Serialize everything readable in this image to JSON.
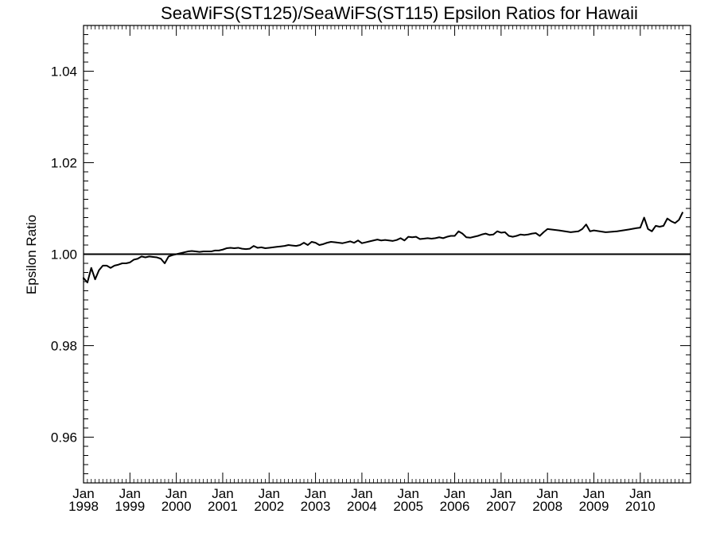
{
  "chart_data": {
    "type": "line",
    "title": "SeaWiFS(ST125)/SeaWiFS(ST115)  Epsilon Ratios for Hawaii",
    "xlabel": "",
    "ylabel": "Epsilon Ratio",
    "ylim": [
      0.95,
      1.05
    ],
    "xlim": [
      "1998-01",
      "2011-02"
    ],
    "grid": false,
    "reference_line": 1.0,
    "yticks": [
      {
        "value": 0.96,
        "label": "0.96"
      },
      {
        "value": 0.98,
        "label": "0.98"
      },
      {
        "value": 1.0,
        "label": "1.00"
      },
      {
        "value": 1.02,
        "label": "1.02"
      },
      {
        "value": 1.04,
        "label": "1.04"
      }
    ],
    "xticks": [
      {
        "date": "1998-01",
        "month": "Jan",
        "year": "1998"
      },
      {
        "date": "1999-01",
        "month": "Jan",
        "year": "1999"
      },
      {
        "date": "2000-01",
        "month": "Jan",
        "year": "2000"
      },
      {
        "date": "2001-01",
        "month": "Jan",
        "year": "2001"
      },
      {
        "date": "2002-01",
        "month": "Jan",
        "year": "2002"
      },
      {
        "date": "2003-01",
        "month": "Jan",
        "year": "2003"
      },
      {
        "date": "2004-01",
        "month": "Jan",
        "year": "2004"
      },
      {
        "date": "2005-01",
        "month": "Jan",
        "year": "2005"
      },
      {
        "date": "2006-01",
        "month": "Jan",
        "year": "2006"
      },
      {
        "date": "2007-01",
        "month": "Jan",
        "year": "2007"
      },
      {
        "date": "2008-01",
        "month": "Jan",
        "year": "2008"
      },
      {
        "date": "2009-01",
        "month": "Jan",
        "year": "2009"
      },
      {
        "date": "2010-01",
        "month": "Jan",
        "year": "2010"
      }
    ],
    "series": [
      {
        "x": [
          "1997-12",
          "1998-01",
          "1998-02",
          "1998-03",
          "1998-04",
          "1998-05",
          "1998-06",
          "1998-07",
          "1998-08",
          "1998-09",
          "1998-10",
          "1998-11",
          "1998-12",
          "1999-01",
          "1999-02",
          "1999-03",
          "1999-04",
          "1999-05",
          "1999-06",
          "1999-07",
          "1999-08",
          "1999-09",
          "1999-10",
          "1999-11",
          "1999-12",
          "2000-01",
          "2000-02",
          "2000-03",
          "2000-04",
          "2000-05",
          "2000-06",
          "2000-07",
          "2000-08",
          "2000-09",
          "2000-10",
          "2000-11",
          "2000-12",
          "2001-01",
          "2001-02",
          "2001-03",
          "2001-04",
          "2001-05",
          "2001-06",
          "2001-07",
          "2001-08",
          "2001-09",
          "2001-10",
          "2001-11",
          "2001-12",
          "2002-01",
          "2002-02",
          "2002-03",
          "2002-04",
          "2002-05",
          "2002-06",
          "2002-07",
          "2002-08",
          "2002-09",
          "2002-10",
          "2002-11",
          "2002-12",
          "2003-01",
          "2003-02",
          "2003-03",
          "2003-04",
          "2003-05",
          "2003-06",
          "2003-07",
          "2003-08",
          "2003-09",
          "2003-10",
          "2003-11",
          "2003-12",
          "2004-01",
          "2004-02",
          "2004-03",
          "2004-04",
          "2004-05",
          "2004-06",
          "2004-07",
          "2004-08",
          "2004-09",
          "2004-10",
          "2004-11",
          "2004-12",
          "2005-01",
          "2005-02",
          "2005-03",
          "2005-04",
          "2005-05",
          "2005-06",
          "2005-07",
          "2005-08",
          "2005-09",
          "2005-10",
          "2005-11",
          "2005-12",
          "2006-01",
          "2006-02",
          "2006-03",
          "2006-04",
          "2006-05",
          "2006-06",
          "2006-07",
          "2006-08",
          "2006-09",
          "2006-10",
          "2006-11",
          "2006-12",
          "2007-01",
          "2007-02",
          "2007-03",
          "2007-04",
          "2007-05",
          "2007-06",
          "2007-07",
          "2007-08",
          "2007-09",
          "2007-10",
          "2007-11",
          "2007-12",
          "2008-01",
          "2008-04",
          "2008-07",
          "2008-09",
          "2008-10",
          "2008-11",
          "2008-12",
          "2009-01",
          "2009-04",
          "2009-07",
          "2009-10",
          "2009-12",
          "2010-01",
          "2010-02",
          "2010-03",
          "2010-04",
          "2010-05",
          "2010-06",
          "2010-07",
          "2010-08",
          "2010-09",
          "2010-10",
          "2010-11",
          "2010-12"
        ],
        "values": [
          0.9945,
          0.9948,
          0.9938,
          0.997,
          0.9945,
          0.9965,
          0.9975,
          0.9975,
          0.997,
          0.9975,
          0.9977,
          0.998,
          0.998,
          0.9982,
          0.9988,
          0.999,
          0.9995,
          0.9993,
          0.9995,
          0.9994,
          0.9993,
          0.999,
          0.998,
          0.9995,
          0.9998,
          1.0,
          1.0002,
          1.0004,
          1.0006,
          1.0007,
          1.0006,
          1.0005,
          1.0006,
          1.0006,
          1.0006,
          1.0008,
          1.0008,
          1.001,
          1.0013,
          1.0014,
          1.0013,
          1.0014,
          1.0012,
          1.0011,
          1.0012,
          1.0018,
          1.0014,
          1.0015,
          1.0013,
          1.0014,
          1.0015,
          1.0016,
          1.0017,
          1.0018,
          1.002,
          1.0019,
          1.0018,
          1.002,
          1.0025,
          1.002,
          1.0027,
          1.0025,
          1.002,
          1.0022,
          1.0025,
          1.0027,
          1.0026,
          1.0025,
          1.0024,
          1.0026,
          1.0028,
          1.0025,
          1.003,
          1.0024,
          1.0026,
          1.0028,
          1.003,
          1.0032,
          1.003,
          1.0031,
          1.003,
          1.0029,
          1.0031,
          1.0035,
          1.003,
          1.0038,
          1.0037,
          1.0038,
          1.0033,
          1.0034,
          1.0035,
          1.0034,
          1.0035,
          1.0037,
          1.0035,
          1.0038,
          1.004,
          1.004,
          1.005,
          1.0045,
          1.0037,
          1.0036,
          1.0038,
          1.004,
          1.0043,
          1.0045,
          1.0042,
          1.0043,
          1.005,
          1.0047,
          1.0048,
          1.004,
          1.0038,
          1.004,
          1.0043,
          1.0042,
          1.0043,
          1.0045,
          1.0046,
          1.004,
          1.0048,
          1.0055,
          1.0052,
          1.0048,
          1.005,
          1.0055,
          1.0065,
          1.005,
          1.0052,
          1.0048,
          1.005,
          1.0054,
          1.0057,
          1.0058,
          1.008,
          1.0055,
          1.005,
          1.0062,
          1.006,
          1.0062,
          1.0078,
          1.0072,
          1.0068,
          1.0075,
          1.0092
        ]
      }
    ]
  }
}
